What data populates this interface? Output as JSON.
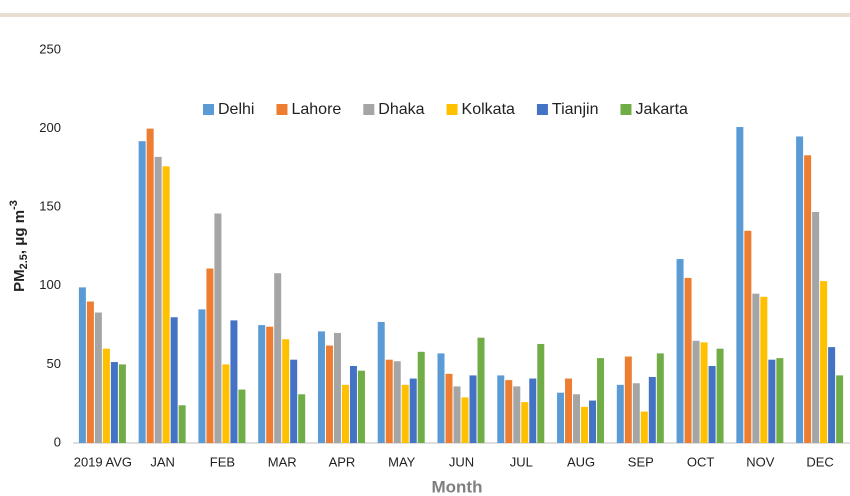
{
  "chart_data": {
    "type": "bar",
    "x_label": "Month",
    "y_label_parts": [
      "PM",
      "2.5",
      ", μg m",
      "-3"
    ],
    "categories": [
      "2019 AVG",
      "JAN",
      "FEB",
      "MAR",
      "APR",
      "MAY",
      "JUN",
      "JUL",
      "AUG",
      "SEP",
      "OCT",
      "NOV",
      "DEC"
    ],
    "series": [
      {
        "name": "Delhi",
        "color": "#5b9bd5",
        "values": [
          99,
          192,
          85,
          75,
          71,
          77,
          57,
          43,
          32,
          37,
          117,
          201,
          195
        ]
      },
      {
        "name": "Lahore",
        "color": "#ed7d31",
        "values": [
          90,
          200,
          111,
          74,
          62,
          53,
          44,
          40,
          41,
          55,
          105,
          135,
          183
        ]
      },
      {
        "name": "Dhaka",
        "color": "#a5a5a5",
        "values": [
          83,
          182,
          146,
          108,
          70,
          52,
          36,
          36,
          31,
          38,
          65,
          95,
          147
        ]
      },
      {
        "name": "Kolkata",
        "color": "#ffc000",
        "values": [
          60,
          176,
          50,
          66,
          37,
          37,
          29,
          26,
          23,
          20,
          64,
          93,
          103
        ]
      },
      {
        "name": "Tianjin",
        "color": "#4472c4",
        "values": [
          51.5,
          80,
          78,
          53,
          49,
          41,
          43,
          41,
          27,
          42,
          49,
          53,
          61
        ]
      },
      {
        "name": "Jakarta",
        "color": "#70ad47",
        "values": [
          50,
          24,
          34,
          31,
          46,
          58,
          67,
          63,
          54,
          57,
          60,
          54,
          43
        ]
      }
    ],
    "ylim": [
      0,
      250
    ],
    "yticks": [
      0,
      50,
      100,
      150,
      200,
      250
    ],
    "grid": false,
    "legend": "top"
  }
}
